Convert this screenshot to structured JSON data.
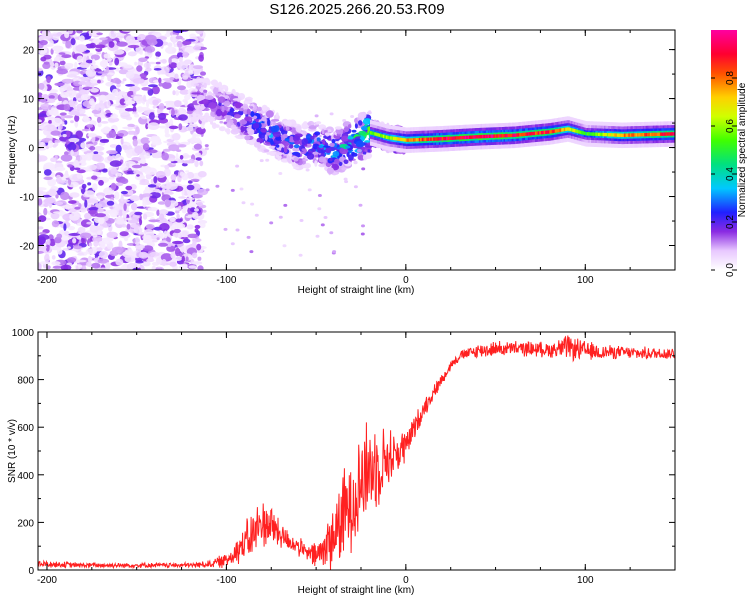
{
  "figure_title": "S126.2025.266.20.53.R09",
  "chart_data": [
    {
      "type": "heatmap",
      "panel": "top",
      "title": "",
      "xlabel": "Height of straight line (km)",
      "ylabel": "Frequency (Hz)",
      "xlim": [
        -205,
        150
      ],
      "ylim": [
        -25,
        24
      ],
      "xticks": [
        -200,
        -100,
        0,
        100
      ],
      "xtick_labels": [
        "-200",
        "-100",
        "0",
        "100"
      ],
      "yticks": [
        -20,
        -10,
        0,
        10,
        20
      ],
      "ytick_labels": [
        "-20",
        "-10",
        "0",
        "10",
        "20"
      ],
      "colorbar": {
        "label": "Normalized spectral amplitude",
        "range": [
          0,
          1
        ],
        "ticks": [
          0.0,
          0.2,
          0.4,
          0.6,
          0.8
        ],
        "tick_labels": [
          "0.0",
          "0.2",
          "0.4",
          "0.6",
          "0.8"
        ],
        "colormap": "rainbow (white -> violet -> blue -> cyan -> green -> yellow -> orange -> red -> magenta)"
      },
      "description_of_signal": "Noise (amplitude ~0.1-0.3) over full frequency range for x < -115 km; dispersed carrier from ~10 Hz at -115 km descending to ~0 Hz near -30 km; narrow strong carrier line ~1.5-3 Hz for x > 0 km",
      "carrier_trace": {
        "x": [
          -115,
          -100,
          -90,
          -80,
          -70,
          -60,
          -50,
          -40,
          -30,
          -20,
          -10,
          0,
          20,
          40,
          60,
          80,
          90,
          100,
          120,
          150
        ],
        "frequency_hz": [
          10,
          8,
          6,
          4,
          2,
          0,
          1,
          -1,
          1,
          3,
          2,
          1.5,
          1.8,
          2.2,
          2.5,
          3.2,
          3.8,
          2.8,
          2.5,
          2.8
        ],
        "amplitude": [
          0.15,
          0.2,
          0.25,
          0.3,
          0.3,
          0.25,
          0.3,
          0.35,
          0.4,
          0.55,
          0.6,
          0.75,
          0.9,
          0.95,
          0.9,
          0.85,
          0.7,
          0.5,
          0.75,
          0.9
        ]
      }
    },
    {
      "type": "line",
      "panel": "bottom",
      "title": "",
      "xlabel": "Height of straight line (km)",
      "ylabel": "SNR (10 * v/v)",
      "xlim": [
        -205,
        150
      ],
      "ylim": [
        0,
        1000
      ],
      "xticks": [
        -200,
        -100,
        0,
        100
      ],
      "xtick_labels": [
        "-200",
        "-100",
        "0",
        "100"
      ],
      "yticks": [
        0,
        200,
        400,
        600,
        800,
        1000
      ],
      "ytick_labels": [
        "0",
        "200",
        "400",
        "600",
        "800",
        "1000"
      ],
      "line_color": "#ff2020",
      "series": [
        {
          "name": "SNR",
          "x": [
            -205,
            -180,
            -150,
            -120,
            -110,
            -100,
            -95,
            -90,
            -85,
            -80,
            -75,
            -70,
            -65,
            -60,
            -55,
            -50,
            -45,
            -40,
            -35,
            -30,
            -25,
            -20,
            -15,
            -10,
            -5,
            0,
            5,
            10,
            15,
            20,
            25,
            30,
            40,
            50,
            60,
            70,
            80,
            90,
            100,
            110,
            120,
            130,
            140,
            150
          ],
          "y": [
            25,
            20,
            20,
            20,
            25,
            40,
            80,
            110,
            150,
            200,
            190,
            150,
            120,
            100,
            70,
            60,
            90,
            150,
            220,
            300,
            380,
            420,
            450,
            470,
            490,
            520,
            600,
            680,
            740,
            800,
            860,
            900,
            920,
            930,
            930,
            930,
            925,
            935,
            920,
            915,
            915,
            910,
            910,
            910
          ],
          "noise_amplitude": [
            15,
            10,
            10,
            10,
            15,
            30,
            50,
            80,
            100,
            100,
            90,
            60,
            40,
            40,
            30,
            60,
            100,
            150,
            180,
            200,
            220,
            200,
            160,
            120,
            90,
            70,
            50,
            40,
            30,
            25,
            20,
            20,
            30,
            30,
            30,
            30,
            30,
            50,
            40,
            30,
            25,
            25,
            25,
            25
          ]
        }
      ]
    }
  ]
}
